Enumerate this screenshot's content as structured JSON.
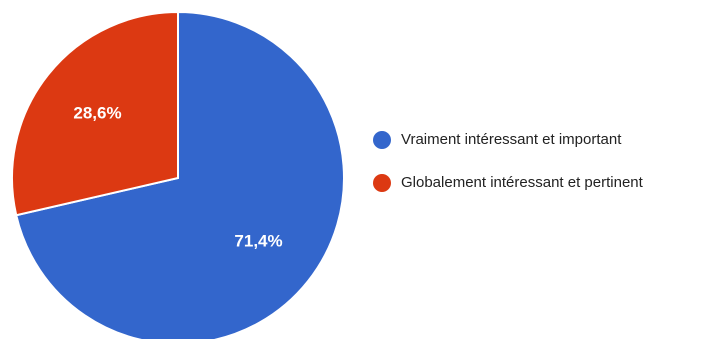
{
  "chart_data": {
    "type": "pie",
    "title": "",
    "legend_position": "right",
    "start_angle": "12 o'clock, clockwise",
    "slices": [
      {
        "label": "Vraiment intéressant et important",
        "value": 71.4,
        "display": "71,4%",
        "color": "#3366cc"
      },
      {
        "label": "Globalement intéressant et pertinent",
        "value": 28.6,
        "display": "28,6%",
        "color": "#dc3912"
      }
    ]
  }
}
